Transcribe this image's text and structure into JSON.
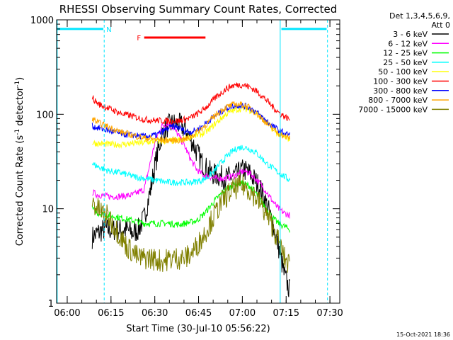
{
  "chart_data": {
    "type": "line",
    "title": "RHESSI Observing Summary Count Rates, Corrected",
    "xlabel": "Start Time (30-Jul-10 05:56:22)",
    "ylabel_main": "Corrected Count Rate (s",
    "ylabel_sup1": "-1",
    "ylabel_mid": " detector",
    "ylabel_sup2": "-1",
    "ylabel_end": ")",
    "yscale": "log",
    "ylim": [
      1,
      1000
    ],
    "x_unit": "minutes since 05:56:22",
    "xlim": [
      0,
      97
    ],
    "yticks": [
      {
        "v": 1,
        "label": "1"
      },
      {
        "v": 10,
        "label": "10"
      },
      {
        "v": 100,
        "label": "100"
      },
      {
        "v": 1000,
        "label": "1000"
      }
    ],
    "xticks": [
      {
        "t": 3.63,
        "label": "06:00"
      },
      {
        "t": 18.63,
        "label": "06:15"
      },
      {
        "t": 33.63,
        "label": "06:30"
      },
      {
        "t": 48.63,
        "label": "06:45"
      },
      {
        "t": 63.63,
        "label": "07:00"
      },
      {
        "t": 78.63,
        "label": "07:15"
      },
      {
        "t": 93.63,
        "label": "07:30"
      }
    ],
    "legend_header": [
      "Det 1,3,4,5,6,9,",
      "Att 0"
    ],
    "legend_position": "outside-right",
    "footer_date": "15-Oct-2021 18:36",
    "annotations": [
      {
        "label": "N",
        "color": "#00e5ff",
        "t": 17.0,
        "y": 800
      },
      {
        "label": "F",
        "color": "#ff0000",
        "t": 27.5,
        "y": 650
      }
    ],
    "night_bars": [
      {
        "t0": 0.2,
        "t1": 16.0,
        "y": 800
      },
      {
        "t0": 77.0,
        "t1": 92.5,
        "y": 800
      }
    ],
    "flare_bar": {
      "t0": 30.0,
      "t1": 51.0,
      "y": 650
    },
    "vertical_lines": [
      {
        "t": 0.2,
        "style": "solid"
      },
      {
        "t": 16.3,
        "style": "dashed"
      },
      {
        "t": 76.6,
        "style": "solid"
      },
      {
        "t": 92.8,
        "style": "dashed"
      }
    ],
    "series": [
      {
        "name": "3 - 6 keV",
        "color": "#000000",
        "points": [
          [
            12.2,
            5
          ],
          [
            14,
            5.5
          ],
          [
            16,
            6
          ],
          [
            20,
            6
          ],
          [
            24,
            6
          ],
          [
            26,
            5.5
          ],
          [
            28,
            6
          ],
          [
            30,
            8
          ],
          [
            32,
            15
          ],
          [
            34,
            32
          ],
          [
            36,
            60
          ],
          [
            38,
            75
          ],
          [
            40,
            80
          ],
          [
            42,
            78
          ],
          [
            44,
            70
          ],
          [
            46,
            55
          ],
          [
            48,
            40
          ],
          [
            50,
            30
          ],
          [
            52,
            25
          ],
          [
            54,
            23
          ],
          [
            56,
            22
          ],
          [
            58,
            21
          ],
          [
            60,
            22
          ],
          [
            62,
            23
          ],
          [
            64,
            26
          ],
          [
            66,
            24
          ],
          [
            68,
            20
          ],
          [
            70,
            16
          ],
          [
            72,
            11
          ],
          [
            74,
            7
          ],
          [
            76,
            4
          ],
          [
            78,
            2
          ],
          [
            80,
            1.3
          ]
        ]
      },
      {
        "name": "6 - 12 keV",
        "color": "#ff00ff",
        "points": [
          [
            12.2,
            15
          ],
          [
            14,
            14
          ],
          [
            18,
            13.5
          ],
          [
            22,
            13.5
          ],
          [
            26,
            14
          ],
          [
            30,
            16
          ],
          [
            32,
            30
          ],
          [
            34,
            55
          ],
          [
            36,
            75
          ],
          [
            38,
            80
          ],
          [
            40,
            72
          ],
          [
            42,
            58
          ],
          [
            44,
            45
          ],
          [
            46,
            33
          ],
          [
            48,
            26
          ],
          [
            50,
            23
          ],
          [
            52,
            22
          ],
          [
            54,
            21
          ],
          [
            56,
            21
          ],
          [
            58,
            21
          ],
          [
            60,
            22
          ],
          [
            62,
            23
          ],
          [
            64,
            25
          ],
          [
            66,
            24
          ],
          [
            68,
            21
          ],
          [
            70,
            18
          ],
          [
            72,
            15
          ],
          [
            74,
            12
          ],
          [
            76,
            10
          ],
          [
            78,
            9
          ],
          [
            80,
            8.5
          ]
        ]
      },
      {
        "name": "12 - 25 keV",
        "color": "#00ff00",
        "points": [
          [
            12.2,
            10
          ],
          [
            14,
            9
          ],
          [
            18,
            8.5
          ],
          [
            22,
            8
          ],
          [
            26,
            7.5
          ],
          [
            30,
            7
          ],
          [
            34,
            7
          ],
          [
            38,
            7
          ],
          [
            42,
            6.8
          ],
          [
            46,
            7.2
          ],
          [
            48,
            7.5
          ],
          [
            50,
            8.5
          ],
          [
            52,
            10
          ],
          [
            54,
            12
          ],
          [
            56,
            14
          ],
          [
            58,
            16
          ],
          [
            60,
            17.5
          ],
          [
            62,
            18.5
          ],
          [
            64,
            18.5
          ],
          [
            66,
            17.5
          ],
          [
            68,
            15
          ],
          [
            70,
            12
          ],
          [
            72,
            10
          ],
          [
            74,
            8
          ],
          [
            76,
            7
          ],
          [
            78,
            6.5
          ],
          [
            80,
            6
          ]
        ]
      },
      {
        "name": "25 - 50 keV",
        "color": "#00ffff",
        "points": [
          [
            12.2,
            30
          ],
          [
            14,
            28
          ],
          [
            18,
            25
          ],
          [
            22,
            24
          ],
          [
            26,
            22
          ],
          [
            30,
            21
          ],
          [
            34,
            20
          ],
          [
            38,
            19
          ],
          [
            42,
            19
          ],
          [
            46,
            19
          ],
          [
            50,
            20
          ],
          [
            52,
            22
          ],
          [
            54,
            25
          ],
          [
            56,
            30
          ],
          [
            58,
            35
          ],
          [
            60,
            40
          ],
          [
            62,
            44
          ],
          [
            64,
            45
          ],
          [
            66,
            43
          ],
          [
            68,
            40
          ],
          [
            70,
            35
          ],
          [
            72,
            30
          ],
          [
            74,
            27
          ],
          [
            76,
            24
          ],
          [
            78,
            22
          ],
          [
            80,
            20
          ]
        ]
      },
      {
        "name": "50 - 100 keV",
        "color": "#ffff00",
        "points": [
          [
            12.2,
            50
          ],
          [
            14,
            49
          ],
          [
            18,
            48
          ],
          [
            22,
            48
          ],
          [
            26,
            49
          ],
          [
            30,
            50
          ],
          [
            34,
            52
          ],
          [
            38,
            52
          ],
          [
            42,
            53
          ],
          [
            44,
            55
          ],
          [
            46,
            58
          ],
          [
            50,
            62
          ],
          [
            52,
            68
          ],
          [
            54,
            78
          ],
          [
            56,
            88
          ],
          [
            58,
            100
          ],
          [
            60,
            108
          ],
          [
            62,
            113
          ],
          [
            64,
            115
          ],
          [
            66,
            112
          ],
          [
            68,
            105
          ],
          [
            70,
            92
          ],
          [
            72,
            80
          ],
          [
            74,
            70
          ],
          [
            76,
            62
          ],
          [
            78,
            57
          ],
          [
            80,
            55
          ]
        ]
      },
      {
        "name": "100 - 300 keV",
        "color": "#ff0000",
        "points": [
          [
            12.2,
            150
          ],
          [
            14,
            130
          ],
          [
            18,
            115
          ],
          [
            22,
            102
          ],
          [
            26,
            95
          ],
          [
            30,
            88
          ],
          [
            34,
            86
          ],
          [
            38,
            85
          ],
          [
            42,
            85
          ],
          [
            44,
            88
          ],
          [
            46,
            92
          ],
          [
            48,
            100
          ],
          [
            50,
            110
          ],
          [
            52,
            125
          ],
          [
            54,
            145
          ],
          [
            56,
            165
          ],
          [
            58,
            185
          ],
          [
            60,
            200
          ],
          [
            62,
            205
          ],
          [
            64,
            205
          ],
          [
            66,
            195
          ],
          [
            68,
            180
          ],
          [
            70,
            160
          ],
          [
            72,
            140
          ],
          [
            74,
            120
          ],
          [
            76,
            105
          ],
          [
            78,
            95
          ],
          [
            80,
            88
          ]
        ]
      },
      {
        "name": "300 - 800 keV",
        "color": "#0000ff",
        "points": [
          [
            12.2,
            75
          ],
          [
            14,
            72
          ],
          [
            18,
            67
          ],
          [
            22,
            62
          ],
          [
            26,
            60
          ],
          [
            30,
            58
          ],
          [
            34,
            60
          ],
          [
            38,
            70
          ],
          [
            40,
            75
          ],
          [
            42,
            72
          ],
          [
            44,
            66
          ],
          [
            46,
            65
          ],
          [
            48,
            68
          ],
          [
            50,
            75
          ],
          [
            52,
            85
          ],
          [
            54,
            95
          ],
          [
            56,
            105
          ],
          [
            58,
            115
          ],
          [
            60,
            122
          ],
          [
            62,
            125
          ],
          [
            64,
            123
          ],
          [
            66,
            118
          ],
          [
            68,
            108
          ],
          [
            70,
            95
          ],
          [
            72,
            85
          ],
          [
            74,
            75
          ],
          [
            76,
            68
          ],
          [
            78,
            63
          ],
          [
            80,
            60
          ]
        ]
      },
      {
        "name": "800 - 7000 keV",
        "color": "#ffa500",
        "points": [
          [
            12.2,
            90
          ],
          [
            14,
            82
          ],
          [
            18,
            73
          ],
          [
            22,
            65
          ],
          [
            26,
            60
          ],
          [
            30,
            56
          ],
          [
            34,
            54
          ],
          [
            38,
            53
          ],
          [
            42,
            53
          ],
          [
            44,
            54
          ],
          [
            46,
            58
          ],
          [
            48,
            65
          ],
          [
            50,
            72
          ],
          [
            52,
            82
          ],
          [
            54,
            95
          ],
          [
            56,
            108
          ],
          [
            58,
            118
          ],
          [
            60,
            125
          ],
          [
            62,
            128
          ],
          [
            64,
            125
          ],
          [
            66,
            118
          ],
          [
            68,
            105
          ],
          [
            70,
            92
          ],
          [
            72,
            80
          ],
          [
            74,
            70
          ],
          [
            76,
            63
          ],
          [
            78,
            58
          ],
          [
            80,
            56
          ]
        ]
      },
      {
        "name": "7000 - 15000 keV",
        "color": "#808000",
        "points": [
          [
            12.2,
            12
          ],
          [
            14,
            10
          ],
          [
            18,
            8
          ],
          [
            22,
            5
          ],
          [
            24,
            4
          ],
          [
            26,
            3.5
          ],
          [
            28,
            3
          ],
          [
            32,
            3
          ],
          [
            36,
            2.8
          ],
          [
            40,
            3
          ],
          [
            44,
            3
          ],
          [
            46,
            3.3
          ],
          [
            48,
            4
          ],
          [
            50,
            5
          ],
          [
            52,
            6.5
          ],
          [
            54,
            8.5
          ],
          [
            56,
            11
          ],
          [
            58,
            13.5
          ],
          [
            60,
            15.5
          ],
          [
            62,
            17
          ],
          [
            64,
            17.5
          ],
          [
            66,
            16
          ],
          [
            68,
            13.5
          ],
          [
            70,
            11
          ],
          [
            72,
            8.5
          ],
          [
            74,
            6.5
          ],
          [
            76,
            4.5
          ],
          [
            78,
            3
          ],
          [
            80,
            2.5
          ]
        ]
      }
    ]
  }
}
